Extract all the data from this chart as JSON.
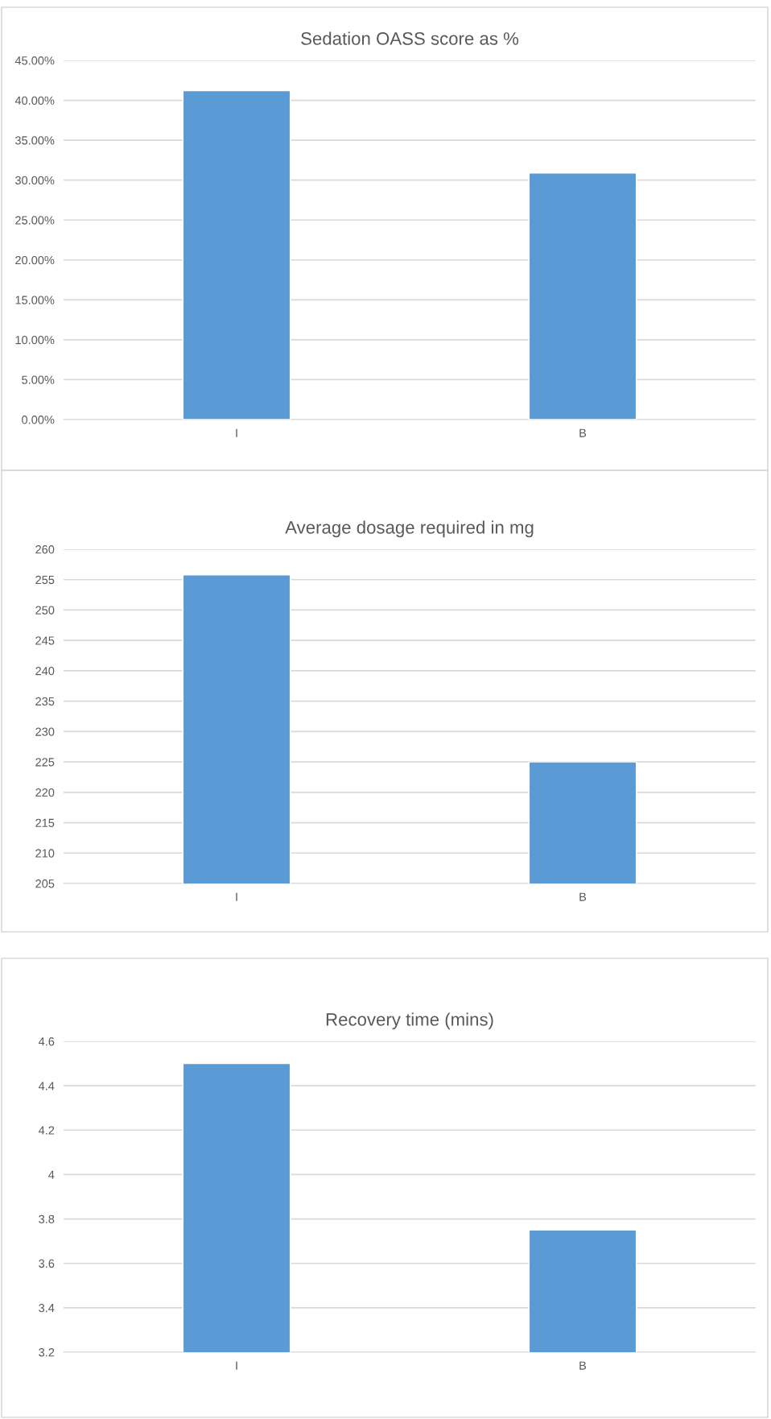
{
  "chart_data": [
    {
      "type": "bar",
      "title": "Sedation OASS score as %",
      "categories": [
        "I",
        "B"
      ],
      "values": [
        41.2,
        30.9
      ],
      "color": "#5b9bd5",
      "ylim": [
        0,
        45
      ],
      "yticks": [
        {
          "value": 0,
          "label": "0.00%"
        },
        {
          "value": 5,
          "label": "5.00%"
        },
        {
          "value": 10,
          "label": "10.00%"
        },
        {
          "value": 15,
          "label": "15.00%"
        },
        {
          "value": 20,
          "label": "20.00%"
        },
        {
          "value": 25,
          "label": "25.00%"
        },
        {
          "value": 30,
          "label": "30.00%"
        },
        {
          "value": 35,
          "label": "35.00%"
        },
        {
          "value": 40,
          "label": "40.00%"
        },
        {
          "value": 45,
          "label": "45.00%"
        }
      ],
      "grid": "y"
    },
    {
      "type": "bar",
      "title": "Average dosage required in mg",
      "categories": [
        "I",
        "B"
      ],
      "values": [
        255.8,
        225
      ],
      "color": "#5b9bd5",
      "ylim": [
        205,
        260
      ],
      "yticks": [
        205,
        210,
        215,
        220,
        225,
        230,
        235,
        240,
        245,
        250,
        255,
        260
      ],
      "grid": "y"
    },
    {
      "type": "bar",
      "title": "Recovery time (mins)",
      "categories": [
        "I",
        "B"
      ],
      "values": [
        4.5,
        3.75
      ],
      "color": "#5b9bd5",
      "ylim": [
        3.2,
        4.6
      ],
      "yticks": [
        3.2,
        3.4,
        3.6,
        3.8,
        {
          "value": 4,
          "label": "4"
        },
        4.2,
        4.4,
        4.6
      ],
      "grid": "y"
    }
  ]
}
